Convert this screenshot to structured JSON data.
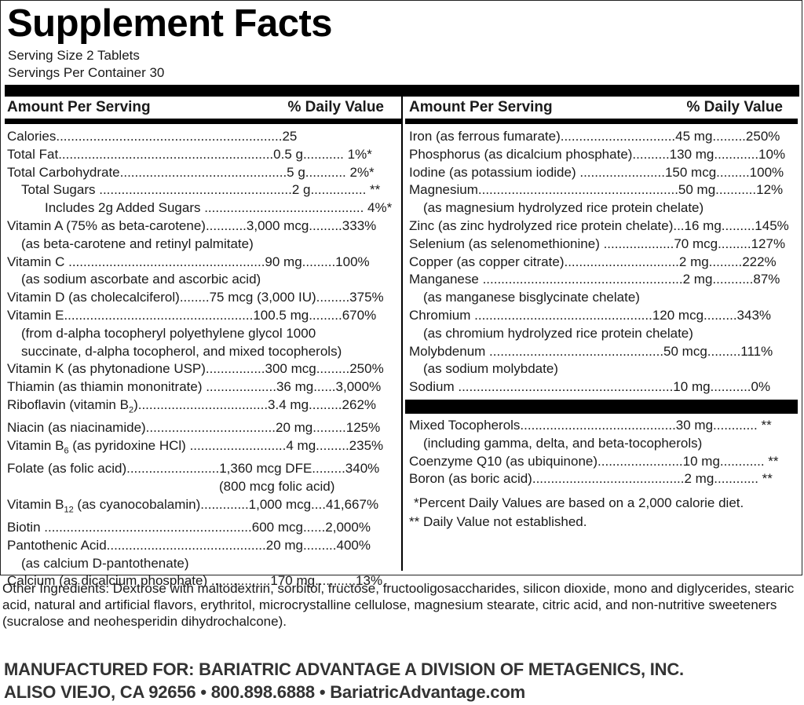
{
  "title": "Supplement Facts",
  "serving_size": "Serving Size 2 Tablets",
  "servings_per_container": "Servings Per Container 30",
  "left_header": {
    "amount": "Amount Per Serving",
    "dv": "% Daily Value"
  },
  "right_header": {
    "amount": "Amount Per Serving",
    "dv": "% Daily Value"
  },
  "left_rows": [
    {
      "text": "Calories.............................................................25",
      "indent": 0
    },
    {
      "text": "Total Fat..........................................................0.5 g........... 1%*",
      "indent": 0
    },
    {
      "text": "Total Carbohydrate.............................................5 g........... 2%*",
      "indent": 0
    },
    {
      "text": "Total Sugars ....................................................2 g............... **",
      "indent": 1
    },
    {
      "text": "Includes 2g Added Sugars ........................................... 4%*",
      "indent": 2
    },
    {
      "text": "Vitamin A (75% as beta-carotene)...........3,000 mcg.........333%",
      "indent": 0
    },
    {
      "text": "(as beta-carotene and retinyl palmitate)",
      "indent": 1
    },
    {
      "text": "Vitamin C .....................................................90 mg.........100%",
      "indent": 0
    },
    {
      "text": "(as sodium ascorbate and ascorbic acid)",
      "indent": 1
    },
    {
      "text": "Vitamin D (as cholecalciferol)........75 mcg (3,000 IU).........375%",
      "indent": 0
    },
    {
      "text": "Vitamin E...................................................100.5 mg.........670%",
      "indent": 0
    },
    {
      "text": "(from d-alpha tocopheryl polyethylene glycol 1000",
      "indent": 1
    },
    {
      "text": "succinate, d-alpha tocopherol, and mixed tocopherols)",
      "indent": 1
    },
    {
      "text": "Vitamin K (as phytonadione USP)................300 mcg.........250%",
      "indent": 0
    },
    {
      "text": "Thiamin (as thiamin mononitrate) ...................36 mg......3,000%",
      "indent": 0
    },
    {
      "text": "Riboflavin (vitamin B2)...................................3.4 mg.........262%",
      "indent": 0
    },
    {
      "text": "Niacin (as niacinamide)...................................20 mg.........125%",
      "indent": 0
    },
    {
      "text": "Vitamin B6 (as pyridoxine HCl) ..........................4 mg.........235%",
      "indent": 0
    },
    {
      "text": "Folate (as folic acid).........................1,360 mcg DFE.........340%",
      "indent": 0
    },
    {
      "text": "(800 mcg folic acid)",
      "indent": 3
    },
    {
      "text": "Vitamin B12 (as cyanocobalamin).............1,000 mcg....41,667%",
      "indent": 0
    },
    {
      "text": "Biotin ........................................................600 mcg......2,000%",
      "indent": 0
    },
    {
      "text": "Pantothenic Acid...........................................20 mg.........400%",
      "indent": 0
    },
    {
      "text": "(as calcium D-pantothenate)",
      "indent": 1
    },
    {
      "text": "Calcium (as dicalcium phosphate) ................170 mg...........13%",
      "indent": 0
    }
  ],
  "right_rows_top": [
    {
      "text": "Iron (as ferrous fumarate)...............................45 mg.........250%",
      "indent": 0
    },
    {
      "text": "Phosphorus (as dicalcium phosphate)..........130 mg............10%",
      "indent": 0
    },
    {
      "text": "Iodine (as potassium iodide) .......................150 mcg.........100%",
      "indent": 0
    },
    {
      "text": "Magnesium......................................................50 mg...........12%",
      "indent": 0
    },
    {
      "text": "(as magnesium hydrolyzed rice protein chelate)",
      "indent": 1
    },
    {
      "text": "Zinc (as zinc hydrolyzed rice protein chelate)...16 mg.........145%",
      "indent": 0
    },
    {
      "text": "Selenium (as selenomethionine) ...................70 mcg.........127%",
      "indent": 0
    },
    {
      "text": "Copper (as copper citrate)...............................2 mg.........222%",
      "indent": 0
    },
    {
      "text": "Manganese ......................................................2 mg...........87%",
      "indent": 0
    },
    {
      "text": "(as manganese bisglycinate chelate)",
      "indent": 1
    },
    {
      "text": "Chromium ................................................120 mcg.........343%",
      "indent": 0
    },
    {
      "text": "(as chromium hydrolyzed rice protein chelate)",
      "indent": 1
    },
    {
      "text": "Molybdenum ...............................................50 mcg.........111%",
      "indent": 0
    },
    {
      "text": "(as sodium molybdate)",
      "indent": 1
    },
    {
      "text": "Sodium ..........................................................10 mg...........0%",
      "indent": 0
    }
  ],
  "right_rows_bottom": [
    {
      "text": "Mixed Tocopherols..........................................30 mg............ **",
      "indent": 0
    },
    {
      "text": "(including gamma, delta, and beta-tocopherols)",
      "indent": 1
    },
    {
      "text": "Coenzyme Q10 (as ubiquinone).......................10 mg............ **",
      "indent": 0
    },
    {
      "text": "Boron (as boric acid).........................................2 mg............ **",
      "indent": 0
    }
  ],
  "footnote_1": "*Percent Daily Values are based on a 2,000 calorie diet.",
  "footnote_2": "** Daily Value not established.",
  "other_ingredients": "Other Ingredients: Dextrose with maltodextrin, sorbitol, fructose, fructooligosaccharides, silicon dioxide, mono and diglycerides, stearic acid, natural and artificial flavors, erythritol, microcrystalline cellulose, magnesium stearate, citric acid, and non-nutritive sweeteners (sucralose and neohesperidin dihydrochalcone).",
  "manufacturer_line": "MANUFACTURED FOR: BARIATRIC ADVANTAGE A DIVISION OF METAGENICS, INC.",
  "address_line": "ALISO VIEJO, CA 92656 • 800.898.6888 • BariatricAdvantage.com"
}
